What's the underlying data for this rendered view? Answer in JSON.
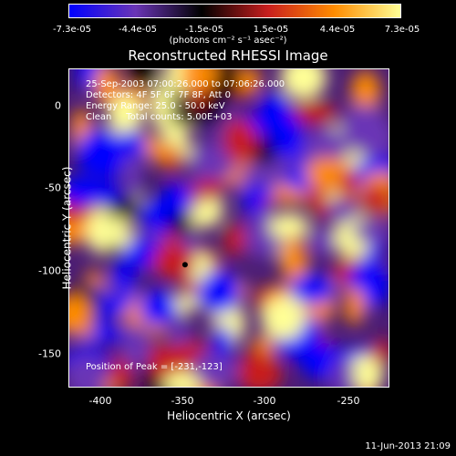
{
  "colorbar": {
    "ticks": [
      "-7.3e-05",
      "-4.4e-05",
      "-1.5e-05",
      "1.5e-05",
      "4.4e-05",
      "7.3e-05"
    ],
    "unit": "(photons cm⁻² s⁻¹ asec⁻²)"
  },
  "chart_data": {
    "type": "heatmap",
    "title": "Reconstructed RHESSI Image",
    "xlabel": "Heliocentric X (arcsec)",
    "ylabel": "Heliocentric Y (arcsec)",
    "xlim": [
      -418,
      -225
    ],
    "ylim": [
      -170,
      20
    ],
    "xticks": [
      "-400",
      "-350",
      "-300",
      "-250"
    ],
    "yticks": [
      "0",
      "-50",
      "-100",
      "-150"
    ],
    "zlim": [
      -7.3e-05,
      7.3e-05
    ],
    "colormap": [
      "#0000ff",
      "#6a35b6",
      "#000000",
      "#c81e1e",
      "#ff8c00",
      "#ffff96"
    ],
    "annotations": {
      "line1": "25-Sep-2003 07:00:26.000 to 07:06:26.000",
      "line2": "Detectors: 4F 5F 6F 7F 8F, Att 0",
      "line3": "Energy Range: 25.0 - 50.0 keV",
      "line4": "Clean     Total counts: 5.00E+03",
      "peak": "Position of Peak = [-231,-123]"
    },
    "marker": {
      "x": -348,
      "y": -97
    }
  },
  "timestamp": "11-Jun-2013 21:09"
}
